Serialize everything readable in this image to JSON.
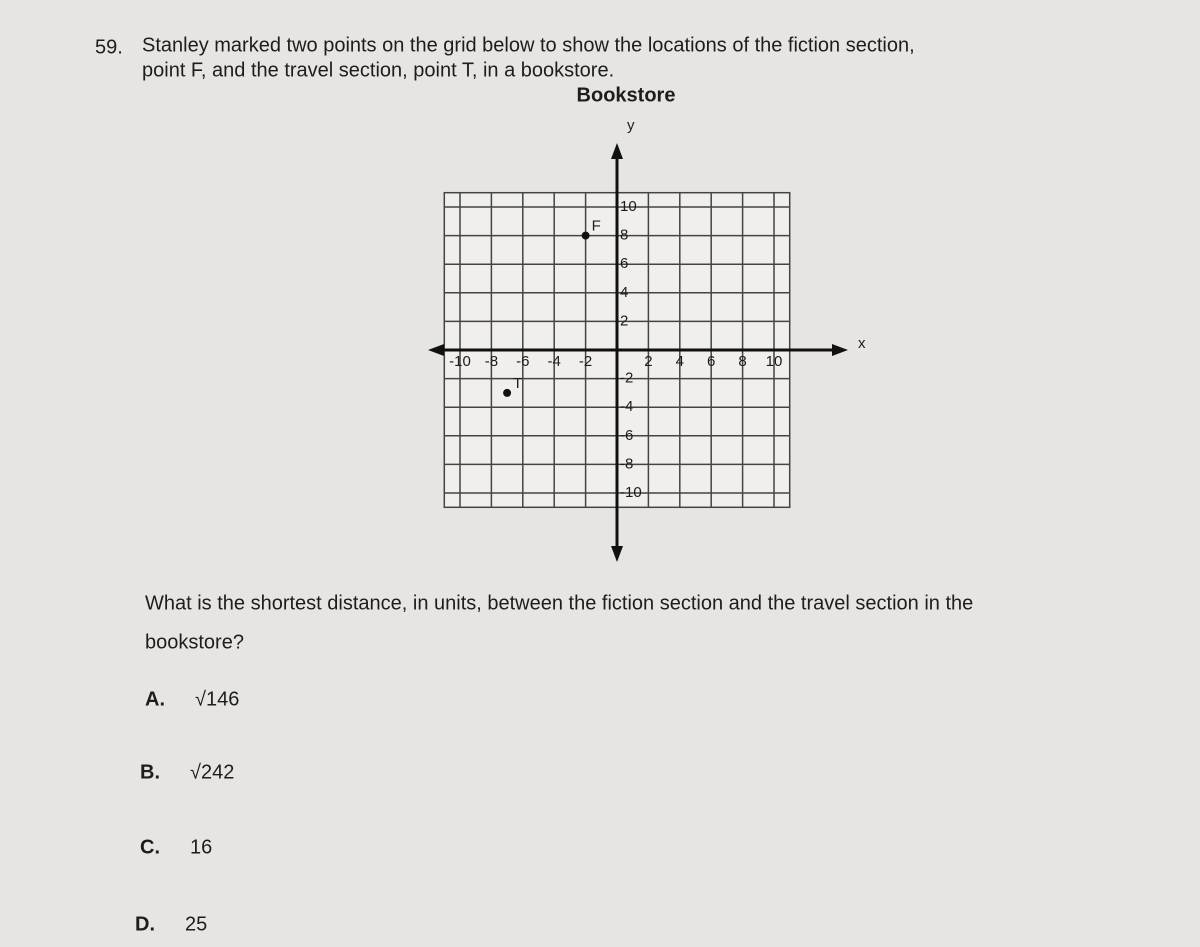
{
  "question": {
    "number": "59.",
    "lines": [
      "Stanley marked two points on the grid below to show the locations of the fiction section,",
      "point F, and the travel section, point T, in a bookstore."
    ]
  },
  "figure": {
    "title": "Bookstore",
    "x_label": "x",
    "y_label": "y",
    "xlim": [
      -11,
      11
    ],
    "ylim": [
      -11,
      11
    ],
    "xticks": [
      -10,
      -8,
      -6,
      -4,
      -2,
      2,
      4,
      6,
      8,
      10
    ],
    "yticks": [
      10,
      8,
      6,
      4,
      2,
      -2,
      -4,
      -6,
      -8,
      -10
    ],
    "points": [
      {
        "label": "F",
        "x": -2,
        "y": 8
      },
      {
        "label": "T",
        "x": -7,
        "y": -3
      }
    ]
  },
  "prompt": {
    "lines": [
      "What is the shortest distance, in units, between the fiction section and the travel section in the",
      "bookstore?"
    ]
  },
  "choices": [
    {
      "letter": "A.",
      "text": "√146"
    },
    {
      "letter": "B.",
      "text": "√242"
    },
    {
      "letter": "C.",
      "text": "16"
    },
    {
      "letter": "D.",
      "text": "25"
    }
  ]
}
